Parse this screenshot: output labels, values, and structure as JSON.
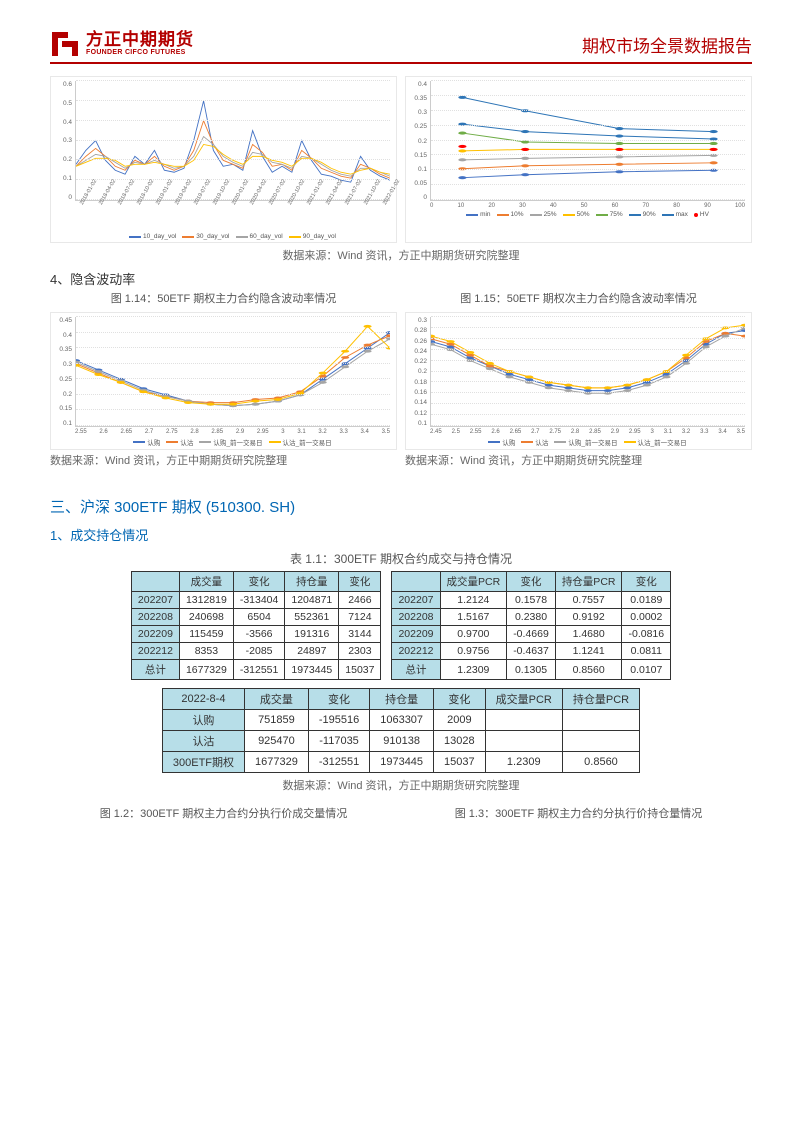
{
  "header": {
    "logo_cn": "方正中期期货",
    "logo_en": "FOUNDER CIFCO FUTURES",
    "report_title": "期权市场全景数据报告"
  },
  "colors": {
    "brand_red": "#b30000",
    "blue": "#4472c4",
    "orange": "#ed7d31",
    "gray": "#a5a5a5",
    "yellow": "#ffc000",
    "darkblue": "#2e75b6",
    "green": "#70ad47",
    "red": "#ff0000",
    "grid": "#e0e0e0",
    "text": "#333333",
    "header_bg": "#b7dee8",
    "section_blue": "#0066b3"
  },
  "chart1": {
    "type": "line",
    "ylim": [
      0,
      0.6
    ],
    "yticks": [
      "0",
      "0.1",
      "0.2",
      "0.3",
      "0.4",
      "0.5",
      "0.6"
    ],
    "xticks": [
      "2018-01-02",
      "2018-04-02",
      "2018-07-02",
      "2018-10-02",
      "2019-01-02",
      "2019-04-02",
      "2019-07-02",
      "2019-10-02",
      "2020-01-02",
      "2020-04-02",
      "2020-07-02",
      "2020-10-02",
      "2021-01-02",
      "2021-04-02",
      "2021-07-02",
      "2021-10-02",
      "2022-01-02"
    ],
    "legend": [
      {
        "label": "10_day_vol",
        "color": "#4472c4"
      },
      {
        "label": "30_day_vol",
        "color": "#ed7d31"
      },
      {
        "label": "60_day_vol",
        "color": "#a5a5a5"
      },
      {
        "label": "90_day_vol",
        "color": "#ffc000"
      }
    ],
    "series": {
      "s10": [
        0.18,
        0.25,
        0.3,
        0.2,
        0.15,
        0.13,
        0.22,
        0.18,
        0.25,
        0.15,
        0.14,
        0.16,
        0.3,
        0.5,
        0.25,
        0.17,
        0.18,
        0.15,
        0.35,
        0.22,
        0.14,
        0.17,
        0.14,
        0.3,
        0.2,
        0.13,
        0.12,
        0.1,
        0.09,
        0.22,
        0.15,
        0.12,
        0.1
      ],
      "s30": [
        0.17,
        0.22,
        0.26,
        0.22,
        0.17,
        0.15,
        0.2,
        0.18,
        0.22,
        0.17,
        0.15,
        0.17,
        0.25,
        0.4,
        0.28,
        0.2,
        0.18,
        0.16,
        0.28,
        0.24,
        0.17,
        0.18,
        0.15,
        0.25,
        0.21,
        0.16,
        0.14,
        0.12,
        0.11,
        0.18,
        0.16,
        0.13,
        0.11
      ],
      "s60": [
        0.17,
        0.2,
        0.23,
        0.22,
        0.19,
        0.16,
        0.19,
        0.18,
        0.2,
        0.18,
        0.16,
        0.17,
        0.22,
        0.32,
        0.28,
        0.22,
        0.19,
        0.17,
        0.24,
        0.23,
        0.19,
        0.18,
        0.16,
        0.22,
        0.21,
        0.18,
        0.15,
        0.13,
        0.12,
        0.16,
        0.16,
        0.14,
        0.12
      ],
      "s90": [
        0.17,
        0.19,
        0.21,
        0.21,
        0.2,
        0.17,
        0.18,
        0.18,
        0.19,
        0.18,
        0.17,
        0.17,
        0.2,
        0.28,
        0.27,
        0.23,
        0.2,
        0.18,
        0.22,
        0.22,
        0.2,
        0.19,
        0.17,
        0.21,
        0.21,
        0.19,
        0.16,
        0.14,
        0.13,
        0.15,
        0.16,
        0.14,
        0.13
      ]
    }
  },
  "chart2": {
    "type": "line",
    "ylim": [
      0,
      0.4
    ],
    "yticks": [
      "0",
      "0.05",
      "0.1",
      "0.15",
      "0.2",
      "0.25",
      "0.3",
      "0.35",
      "0.4"
    ],
    "xticks": [
      "0",
      "10",
      "20",
      "30",
      "40",
      "50",
      "60",
      "70",
      "80",
      "90",
      "100"
    ],
    "legend": [
      {
        "label": "min",
        "color": "#4472c4",
        "type": "line"
      },
      {
        "label": "10%",
        "color": "#ed7d31",
        "type": "line"
      },
      {
        "label": "25%",
        "color": "#a5a5a5",
        "type": "line"
      },
      {
        "label": "50%",
        "color": "#ffc000",
        "type": "line"
      },
      {
        "label": "75%",
        "color": "#70ad47",
        "type": "line"
      },
      {
        "label": "90%",
        "color": "#2e75b6",
        "type": "line"
      },
      {
        "label": "max",
        "color": "#2e75b6",
        "type": "line"
      },
      {
        "label": "HV",
        "color": "#ff0000",
        "type": "dot"
      }
    ],
    "x": [
      10,
      30,
      60,
      90
    ],
    "series": {
      "min": [
        0.075,
        0.085,
        0.095,
        0.1
      ],
      "p10": [
        0.105,
        0.115,
        0.12,
        0.125
      ],
      "p25": [
        0.135,
        0.14,
        0.145,
        0.15
      ],
      "p50": [
        0.165,
        0.17,
        0.17,
        0.17
      ],
      "p75": [
        0.225,
        0.195,
        0.19,
        0.19
      ],
      "p90": [
        0.255,
        0.23,
        0.215,
        0.205
      ],
      "max": [
        0.345,
        0.3,
        0.24,
        0.23
      ],
      "hv": [
        0.18,
        0.17,
        0.17,
        0.17
      ]
    }
  },
  "section4": "4、隐含波动率",
  "fig114_caption": "图 1.14：50ETF 期权主力合约隐含波动率情况",
  "fig115_caption": "图 1.15：50ETF 期权次主力合约隐含波动率情况",
  "chart3": {
    "type": "line",
    "ylim": [
      0.1,
      0.45
    ],
    "yticks": [
      "0.1",
      "0.15",
      "0.2",
      "0.25",
      "0.3",
      "0.35",
      "0.4",
      "0.45"
    ],
    "xticks": [
      "2.55",
      "2.6",
      "2.65",
      "2.7",
      "2.75",
      "2.8",
      "2.85",
      "2.9",
      "2.95",
      "3",
      "3.1",
      "3.2",
      "3.3",
      "3.4",
      "3.5"
    ],
    "legend": [
      {
        "label": "认购",
        "color": "#4472c4"
      },
      {
        "label": "认沽",
        "color": "#ed7d31"
      },
      {
        "label": "认购_前一交易日",
        "color": "#a5a5a5"
      },
      {
        "label": "认沽_前一交易日",
        "color": "#ffc000"
      }
    ],
    "series": {
      "call": [
        0.31,
        0.28,
        0.25,
        0.22,
        0.2,
        0.18,
        0.17,
        0.165,
        0.17,
        0.18,
        0.2,
        0.25,
        0.3,
        0.35,
        0.4
      ],
      "put": [
        0.3,
        0.27,
        0.24,
        0.21,
        0.195,
        0.18,
        0.175,
        0.175,
        0.185,
        0.19,
        0.21,
        0.26,
        0.32,
        0.36,
        0.39
      ],
      "call_prev": [
        0.305,
        0.275,
        0.245,
        0.215,
        0.195,
        0.18,
        0.17,
        0.165,
        0.17,
        0.18,
        0.2,
        0.24,
        0.29,
        0.34,
        0.38
      ],
      "put_prev": [
        0.295,
        0.265,
        0.24,
        0.21,
        0.19,
        0.175,
        0.17,
        0.17,
        0.18,
        0.185,
        0.205,
        0.27,
        0.34,
        0.42,
        0.35
      ]
    }
  },
  "chart4": {
    "type": "line",
    "ylim": [
      0.1,
      0.3
    ],
    "yticks": [
      "0.1",
      "0.12",
      "0.14",
      "0.16",
      "0.18",
      "0.2",
      "0.22",
      "0.24",
      "0.26",
      "0.28",
      "0.3"
    ],
    "xticks": [
      "2.45",
      "2.5",
      "2.55",
      "2.6",
      "2.65",
      "2.7",
      "2.75",
      "2.8",
      "2.85",
      "2.9",
      "2.95",
      "3",
      "3.1",
      "3.2",
      "3.3",
      "3.4",
      "3.5"
    ],
    "legend": [
      {
        "label": "认购",
        "color": "#4472c4"
      },
      {
        "label": "认沽",
        "color": "#ed7d31"
      },
      {
        "label": "认购_前一交易日",
        "color": "#a5a5a5"
      },
      {
        "label": "认沽_前一交易日",
        "color": "#ffc000"
      }
    ],
    "series": {
      "call": [
        0.255,
        0.245,
        0.225,
        0.21,
        0.195,
        0.185,
        0.175,
        0.17,
        0.165,
        0.165,
        0.17,
        0.18,
        0.195,
        0.22,
        0.25,
        0.27,
        0.275
      ],
      "put": [
        0.26,
        0.25,
        0.23,
        0.21,
        0.2,
        0.19,
        0.18,
        0.175,
        0.17,
        0.17,
        0.175,
        0.185,
        0.2,
        0.225,
        0.255,
        0.27,
        0.265
      ],
      "call_prev": [
        0.25,
        0.24,
        0.22,
        0.205,
        0.19,
        0.18,
        0.17,
        0.165,
        0.16,
        0.16,
        0.165,
        0.175,
        0.19,
        0.215,
        0.245,
        0.265,
        0.28
      ],
      "put_prev": [
        0.265,
        0.255,
        0.235,
        0.215,
        0.2,
        0.19,
        0.18,
        0.175,
        0.17,
        0.17,
        0.175,
        0.185,
        0.2,
        0.23,
        0.26,
        0.28,
        0.285
      ]
    }
  },
  "source_note": "数据来源：Wind 资讯，方正中期期货研究院整理",
  "section3": {
    "title": "三、沪深 300ETF 期权 (510300. SH)",
    "sub1": "1、成交持仓情况",
    "table_caption": "表 1.1：300ETF 期权合约成交与持仓情况"
  },
  "table1": {
    "headers": [
      "",
      "成交量",
      "变化",
      "持仓量",
      "变化"
    ],
    "rows": [
      [
        "202207",
        "1312819",
        "-313404",
        "1204871",
        "2466"
      ],
      [
        "202208",
        "240698",
        "6504",
        "552361",
        "7124"
      ],
      [
        "202209",
        "115459",
        "-3566",
        "191316",
        "3144"
      ],
      [
        "202212",
        "8353",
        "-2085",
        "24897",
        "2303"
      ],
      [
        "总计",
        "1677329",
        "-312551",
        "1973445",
        "15037"
      ]
    ]
  },
  "table2": {
    "headers": [
      "",
      "成交量PCR",
      "变化",
      "持仓量PCR",
      "变化"
    ],
    "rows": [
      [
        "202207",
        "1.2124",
        "0.1578",
        "0.7557",
        "0.0189"
      ],
      [
        "202208",
        "1.5167",
        "0.2380",
        "0.9192",
        "0.0002"
      ],
      [
        "202209",
        "0.9700",
        "-0.4669",
        "1.4680",
        "-0.0816"
      ],
      [
        "202212",
        "0.9756",
        "-0.4637",
        "1.1241",
        "0.0811"
      ],
      [
        "总计",
        "1.2309",
        "0.1305",
        "0.8560",
        "0.0107"
      ]
    ]
  },
  "table3": {
    "headers": [
      "2022-8-4",
      "成交量",
      "变化",
      "持仓量",
      "变化",
      "成交量PCR",
      "持仓量PCR"
    ],
    "rows": [
      [
        "认购",
        "751859",
        "-195516",
        "1063307",
        "2009",
        "",
        ""
      ],
      [
        "认沽",
        "925470",
        "-117035",
        "910138",
        "13028",
        "",
        ""
      ],
      [
        "300ETF期权",
        "1677329",
        "-312551",
        "1973445",
        "15037",
        "1.2309",
        "0.8560"
      ]
    ]
  },
  "fig12_caption": "图 1.2：300ETF 期权主力合约分执行价成交量情况",
  "fig13_caption": "图 1.3：300ETF 期权主力合约分执行价持仓量情况"
}
